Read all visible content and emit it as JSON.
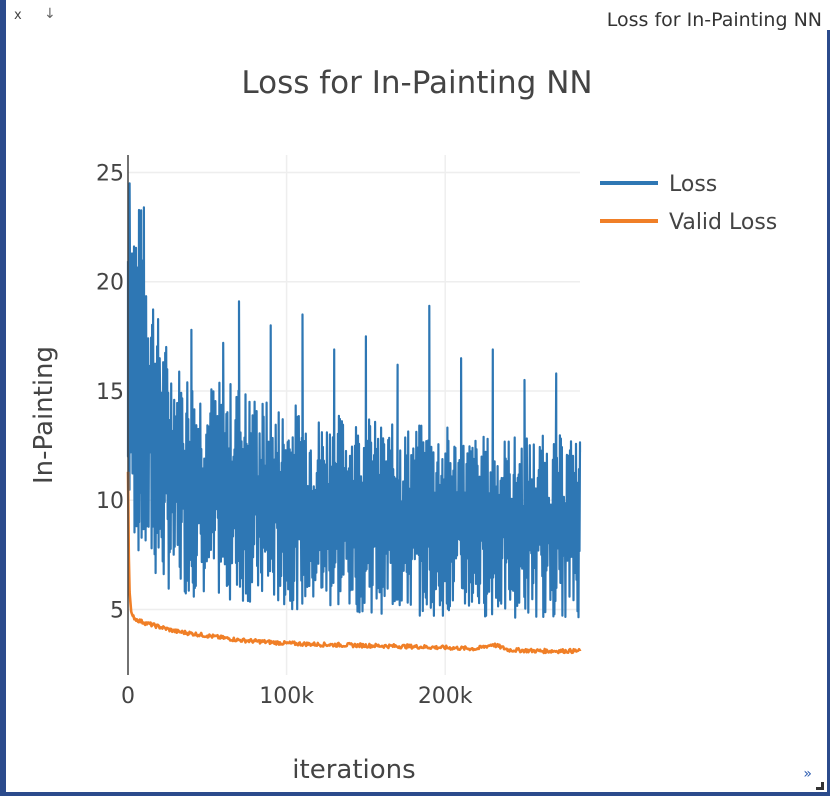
{
  "window": {
    "title": "Loss for In-Painting NN",
    "close_label": "x",
    "pin_icon": "pin-icon",
    "expand_label": "»"
  },
  "chart_data": {
    "type": "line",
    "title": "Loss for In-Painting NN",
    "xlabel": "iterations",
    "ylabel": "In-Painting",
    "xlim": [
      0,
      285000
    ],
    "ylim": [
      2.0,
      25.8
    ],
    "x_ticks": [
      0,
      100000,
      200000
    ],
    "x_tick_labels": [
      "0",
      "100k",
      "200k"
    ],
    "y_ticks": [
      5,
      10,
      15,
      20,
      25
    ],
    "y_tick_labels": [
      "5",
      "10",
      "15",
      "20",
      "25"
    ],
    "grid": true,
    "legend_position": "top-right",
    "series": [
      {
        "name": "Loss",
        "color": "#2e77b4",
        "x": [
          0,
          1000,
          3000,
          5000,
          7000,
          10000,
          15000,
          20000,
          30000,
          40000,
          50000,
          60000,
          70000,
          80000,
          90000,
          100000,
          110000,
          120000,
          130000,
          140000,
          150000,
          160000,
          170000,
          180000,
          190000,
          200000,
          210000,
          220000,
          230000,
          240000,
          250000,
          260000,
          270000,
          280000,
          285000
        ],
        "y": [
          12.0,
          24.5,
          14.0,
          19.6,
          9.0,
          23.4,
          10.5,
          16.5,
          11.0,
          17.8,
          10.8,
          17.2,
          19.1,
          10.5,
          18.0,
          12.0,
          18.5,
          10.8,
          16.9,
          12.0,
          17.5,
          10.5,
          16.2,
          11.5,
          18.9,
          10.5,
          16.5,
          11.0,
          16.9,
          10.5,
          15.5,
          11.0,
          15.8,
          12.0,
          12.2
        ],
        "band_upper": [
          24.5,
          23.4,
          18.0,
          16.5,
          16.0,
          15.5,
          15.5,
          15.5,
          15.0,
          14.5,
          14.5,
          14.5,
          14.0,
          14.0,
          14.0,
          14.0,
          13.5,
          13.5,
          13.5,
          13.5,
          13.5,
          13.0,
          13.0,
          13.0,
          13.0,
          13.0
        ],
        "band_lower": [
          9.0,
          6.5,
          6.0,
          5.7,
          5.6,
          5.5,
          5.4,
          5.3,
          5.2,
          5.1,
          5.0,
          5.0,
          5.0,
          4.9,
          4.9,
          4.8,
          4.8,
          4.8,
          4.7,
          4.7,
          4.7,
          4.7,
          4.6,
          4.6,
          4.6,
          4.6
        ],
        "band_x": [
          0,
          10000,
          20000,
          30000,
          40000,
          50000,
          60000,
          70000,
          80000,
          90000,
          100000,
          110000,
          120000,
          130000,
          140000,
          150000,
          160000,
          170000,
          180000,
          190000,
          200000,
          210000,
          230000,
          250000,
          270000,
          285000
        ]
      },
      {
        "name": "Valid Loss",
        "color": "#f07f27",
        "x": [
          0,
          500,
          1000,
          2000,
          3000,
          5000,
          10000,
          20000,
          30000,
          40000,
          50000,
          60000,
          70000,
          80000,
          100000,
          120000,
          150000,
          180000,
          200000,
          220000,
          230000,
          240000,
          260000,
          280000,
          285000
        ],
        "y": [
          11.3,
          7.5,
          5.8,
          4.9,
          4.7,
          4.55,
          4.4,
          4.2,
          4.0,
          3.9,
          3.8,
          3.7,
          3.6,
          3.55,
          3.45,
          3.4,
          3.35,
          3.3,
          3.25,
          3.2,
          3.4,
          3.15,
          3.1,
          3.1,
          3.1
        ]
      }
    ]
  }
}
